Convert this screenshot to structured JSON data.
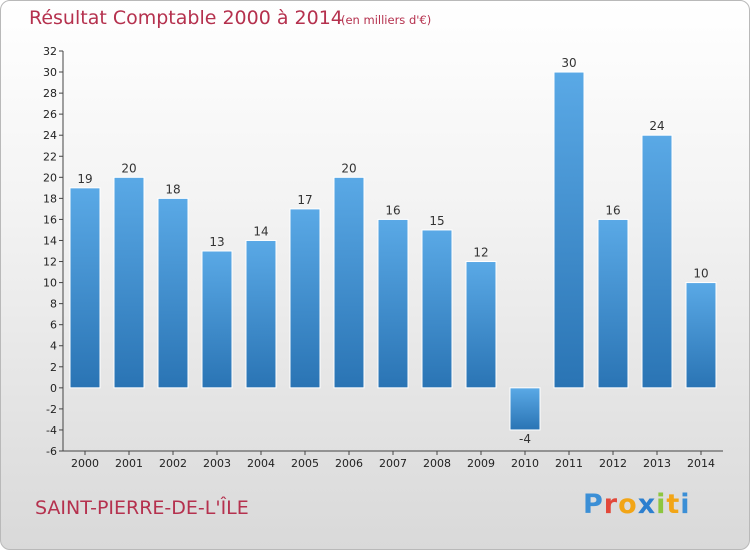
{
  "title": "Résultat Comptable 2000 à 2014",
  "subtitle": "(en milliers d'€)",
  "place": "SAINT-PIERRE-DE-L'ÎLE",
  "logo": {
    "letters": [
      "P",
      "r",
      "o",
      "x",
      "i",
      "t",
      "i"
    ],
    "colors": [
      "#3b8fd6",
      "#e2483a",
      "#f2a516",
      "#2c7fcf",
      "#8dc63f",
      "#f2a516",
      "#3b8fd6"
    ]
  },
  "colors": {
    "title": "#b5314e",
    "bar_light": "#5aa9e6",
    "bar_dark": "#2a74b4"
  },
  "chart_data": {
    "type": "bar",
    "title": "Résultat Comptable 2000 à 2014",
    "xlabel": "",
    "ylabel": "en milliers d'€",
    "categories": [
      "2000",
      "2001",
      "2002",
      "2003",
      "2004",
      "2005",
      "2006",
      "2007",
      "2008",
      "2009",
      "2010",
      "2011",
      "2012",
      "2013",
      "2014"
    ],
    "values": [
      19,
      20,
      18,
      13,
      14,
      17,
      20,
      16,
      15,
      12,
      -4,
      30,
      16,
      24,
      10
    ],
    "ylim": [
      -6,
      32
    ],
    "yticks": [
      -6,
      -4,
      -2,
      0,
      2,
      4,
      6,
      8,
      10,
      12,
      14,
      16,
      18,
      20,
      22,
      24,
      26,
      28,
      30,
      32
    ],
    "grid": false
  }
}
